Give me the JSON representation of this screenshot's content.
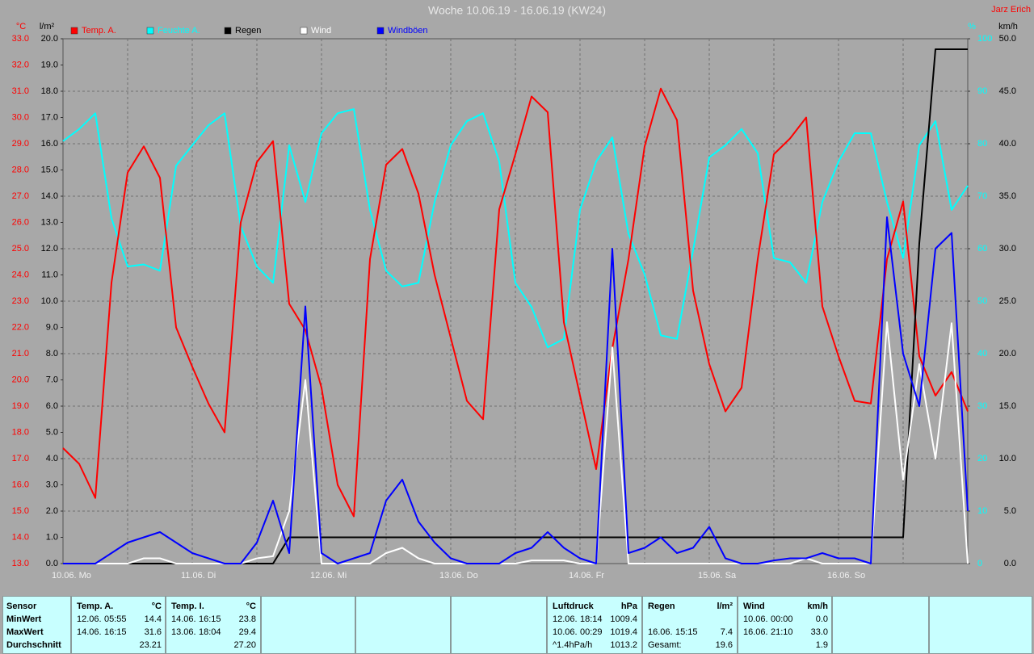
{
  "chart_data": {
    "type": "line",
    "title": "Woche 10.06.19 - 16.06.19 (KW24)",
    "author": "Jarz Erich",
    "categories": [
      "10.06. Mo",
      null,
      null,
      null,
      null,
      null,
      null,
      null,
      "11.06. Di",
      null,
      null,
      null,
      null,
      null,
      null,
      null,
      "12.06. Mi",
      null,
      null,
      null,
      null,
      null,
      null,
      null,
      "13.06. Do",
      null,
      null,
      null,
      null,
      null,
      null,
      null,
      "14.06. Fr",
      null,
      null,
      null,
      null,
      null,
      null,
      null,
      "15.06. Sa",
      null,
      null,
      null,
      null,
      null,
      null,
      null,
      "16.06. So",
      null,
      null,
      null,
      null,
      null,
      null,
      null,
      null
    ],
    "axes": [
      {
        "label": "°C",
        "color": "#ff0000",
        "lim": [
          13,
          33
        ],
        "ticks": [
          {
            "value": 13,
            "label": "13.0"
          },
          {
            "value": 14,
            "label": "14.0"
          },
          {
            "value": 15,
            "label": "15.0"
          },
          {
            "value": 16,
            "label": "16.0"
          },
          {
            "value": 17,
            "label": "17.0"
          },
          {
            "value": 18,
            "label": "18.0"
          },
          {
            "value": 19,
            "label": "19.0"
          },
          {
            "value": 20,
            "label": "20.0"
          },
          {
            "value": 21,
            "label": "21.0"
          },
          {
            "value": 22,
            "label": "22.0"
          },
          {
            "value": 23,
            "label": "23.0"
          },
          {
            "value": 24,
            "label": "24.0"
          },
          {
            "value": 25,
            "label": "25.0"
          },
          {
            "value": 26,
            "label": "26.0"
          },
          {
            "value": 27,
            "label": "27.0"
          },
          {
            "value": 28,
            "label": "28.0"
          },
          {
            "value": 29,
            "label": "29.0"
          },
          {
            "value": 30,
            "label": "30.0"
          },
          {
            "value": 31,
            "label": "31.0"
          },
          {
            "value": 32,
            "label": "32.0"
          },
          {
            "value": 33,
            "label": "33.0"
          }
        ]
      },
      {
        "label": "l/m²",
        "color": "#000000",
        "lim": [
          0,
          20
        ],
        "ticks": [
          {
            "value": 0,
            "label": "0.0"
          },
          {
            "value": 1,
            "label": "1.0"
          },
          {
            "value": 2,
            "label": "2.0"
          },
          {
            "value": 3,
            "label": "3.0"
          },
          {
            "value": 4,
            "label": "4.0"
          },
          {
            "value": 5,
            "label": "5.0"
          },
          {
            "value": 6,
            "label": "6.0"
          },
          {
            "value": 7,
            "label": "7.0"
          },
          {
            "value": 8,
            "label": "8.0"
          },
          {
            "value": 9,
            "label": "9.0"
          },
          {
            "value": 10,
            "label": "10.0"
          },
          {
            "value": 11,
            "label": "11.0"
          },
          {
            "value": 12,
            "label": "12.0"
          },
          {
            "value": 13,
            "label": "13.0"
          },
          {
            "value": 14,
            "label": "14.0"
          },
          {
            "value": 15,
            "label": "15.0"
          },
          {
            "value": 16,
            "label": "16.0"
          },
          {
            "value": 17,
            "label": "17.0"
          },
          {
            "value": 18,
            "label": "18.0"
          },
          {
            "value": 19,
            "label": "19.0"
          },
          {
            "value": 20,
            "label": "20.0"
          }
        ]
      },
      {
        "label": "%",
        "color": "#00ffff",
        "lim": [
          0,
          100
        ],
        "ticks": [
          0,
          10,
          20,
          30,
          40,
          50,
          60,
          70,
          80,
          90,
          100
        ],
        "grid": true
      },
      {
        "label": "km/h",
        "color": "#000000",
        "lim": [
          0,
          50
        ],
        "ticks": [
          {
            "value": 0,
            "label": "0.0"
          },
          {
            "value": 5,
            "label": "5.0"
          },
          {
            "value": 10,
            "label": "10.0"
          },
          {
            "value": 15,
            "label": "15.0"
          },
          {
            "value": 20,
            "label": "20.0"
          },
          {
            "value": 25,
            "label": "25.0"
          },
          {
            "value": 30,
            "label": "30.0"
          },
          {
            "value": 35,
            "label": "35.0"
          },
          {
            "value": 40,
            "label": "40.0"
          },
          {
            "value": 45,
            "label": "45.0"
          },
          {
            "value": 50,
            "label": "50.0"
          }
        ]
      }
    ],
    "series": [
      {
        "name": "Temp. A.",
        "color": "#ff0000",
        "axis": 0,
        "values": [
          17.4,
          16.8,
          15.5,
          23.7,
          27.9,
          28.9,
          27.7,
          22.0,
          20.5,
          19.1,
          18.0,
          26.0,
          28.3,
          29.1,
          22.9,
          21.9,
          19.7,
          16.0,
          14.8,
          24.6,
          28.2,
          28.8,
          27.1,
          24.0,
          21.6,
          19.2,
          18.5,
          26.5,
          28.6,
          30.8,
          30.2,
          22.2,
          19.4,
          16.6,
          21.2,
          24.6,
          28.9,
          31.1,
          29.9,
          23.4,
          20.6,
          18.8,
          19.7,
          24.6,
          28.6,
          29.2,
          30.0,
          22.8,
          20.9,
          19.2,
          19.1,
          24.6,
          26.8,
          20.9,
          19.4,
          20.3,
          18.8
        ]
      },
      {
        "name": "Feuchte A.",
        "color": "#00ffff",
        "axis": 2,
        "values": [
          80.5,
          82.8,
          85.8,
          65.8,
          56.6,
          57,
          55.8,
          75.8,
          79.7,
          83.5,
          85.8,
          64.3,
          56.6,
          53.5,
          79.7,
          68.9,
          82,
          85.8,
          86.6,
          67.4,
          55.8,
          52.8,
          53.5,
          68.9,
          79.7,
          84.3,
          85.8,
          76.6,
          53.5,
          48.9,
          41.2,
          42.8,
          67.4,
          76.6,
          81.2,
          62.8,
          55.1,
          43.5,
          42.8,
          59.7,
          77.4,
          79.7,
          82.8,
          78.2,
          58.2,
          57.4,
          53.5,
          68.9,
          76.6,
          82,
          82,
          68.9,
          58.2,
          79.7,
          84.3,
          67.4,
          72
        ]
      },
      {
        "name": "Regen",
        "color": "#000000",
        "axis": 1,
        "values": [
          0,
          0,
          0,
          0,
          0,
          0,
          0,
          0,
          0,
          0,
          0,
          0,
          0,
          0,
          1,
          1,
          1,
          1,
          1,
          1,
          1,
          1,
          1,
          1,
          1,
          1,
          1,
          1,
          1,
          1,
          1,
          1,
          1,
          1,
          1,
          1,
          1,
          1,
          1,
          1,
          1,
          1,
          1,
          1,
          1,
          1,
          1,
          1,
          1,
          1,
          1,
          1,
          1,
          12.2,
          19.6,
          19.6,
          19.6
        ]
      },
      {
        "name": "Wind",
        "color": "#ffffff",
        "axis": 3,
        "values": [
          0,
          0,
          0,
          0,
          0,
          0.5,
          0.5,
          0,
          0,
          0,
          0,
          0,
          0.5,
          0.7,
          5,
          17.5,
          0,
          0,
          0,
          0,
          1,
          1.5,
          0.5,
          0,
          0,
          0,
          0,
          0,
          0,
          0.3,
          0.3,
          0.3,
          0,
          0,
          20.6,
          0,
          0,
          0,
          0,
          0,
          0,
          0,
          0,
          0,
          0,
          0,
          0.5,
          0,
          0,
          0,
          0,
          23,
          8,
          19,
          10,
          22.9,
          0
        ]
      },
      {
        "name": "Windböen",
        "color": "#0000ff",
        "axis": 3,
        "values": [
          0,
          0,
          0,
          1,
          2,
          2.5,
          3,
          2,
          1,
          0.5,
          0,
          0,
          2,
          6,
          1,
          24.5,
          1,
          0,
          0.5,
          1,
          6,
          8,
          4,
          2,
          0.5,
          0,
          0,
          0,
          1,
          1.5,
          3,
          1.5,
          0.5,
          0,
          30,
          1,
          1.5,
          2.5,
          1,
          1.5,
          3.5,
          0.5,
          0,
          0,
          0.3,
          0.5,
          0.5,
          1,
          0.5,
          0.5,
          0,
          33,
          20,
          15,
          30,
          31.5,
          5
        ]
      }
    ]
  },
  "stats": {
    "row_labels": [
      "Sensor",
      "MinWert",
      "MaxWert",
      "Durchschnitt"
    ],
    "groups": [
      {
        "name": "Temp. A.",
        "unit": "°C",
        "rows": [
          {
            "date": "12.06.",
            "time": "05:55",
            "value": "14.4"
          },
          {
            "date": "14.06.",
            "time": "16:15",
            "value": "31.6"
          },
          {
            "value": "23.21"
          }
        ]
      },
      {
        "name": "Temp. I.",
        "unit": "°C",
        "rows": [
          {
            "date": "14.06.",
            "time": "16:15",
            "value": "23.8"
          },
          {
            "date": "13.06.",
            "time": "18:04",
            "value": "29.4"
          },
          {
            "value": "27.20"
          }
        ]
      },
      {
        "name": "Luftdruck",
        "unit": "hPa",
        "rows": [
          {
            "date": "12.06.",
            "time": "18:14",
            "value": "1009.4"
          },
          {
            "date": "10.06.",
            "time": "00:29",
            "value": "1019.4"
          },
          {
            "date": "^1.4hPa/h",
            "value": "1013.2"
          }
        ]
      },
      {
        "name": "Regen",
        "unit": "l/m²",
        "rows": [
          null,
          {
            "date": "16.06.",
            "time": "15:15",
            "value": "7.4"
          },
          {
            "date": "Gesamt:",
            "value": "19.6"
          }
        ]
      },
      {
        "name": "Wind",
        "unit": "km/h",
        "rows": [
          {
            "date": "10.06.",
            "time": "00:00",
            "value": "0.0"
          },
          {
            "date": "16.06.",
            "time": "21:10",
            "value": "33.0"
          },
          {
            "value": "1.9"
          }
        ]
      }
    ]
  }
}
